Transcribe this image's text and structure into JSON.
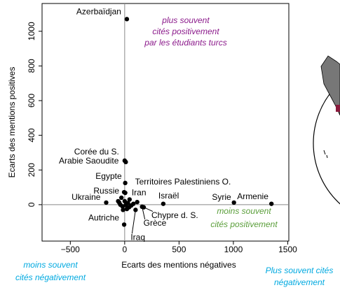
{
  "chart_data": {
    "type": "scatter",
    "xlabel": "Ecarts des mentions négatives",
    "ylabel": "Ecarts des mentions positives",
    "xlim": [
      -760,
      1510
    ],
    "xticks": [
      {
        "value": -500,
        "label": "−500"
      },
      0,
      500,
      1000,
      1500
    ],
    "ylim": [
      -210,
      1160
    ],
    "yticks": [
      0,
      200,
      400,
      600,
      800,
      1000
    ],
    "color": "#000000",
    "points": [
      {
        "label": "Azerbaïdjan",
        "x": 20,
        "y": 1070
      },
      {
        "label": "Corée du S.",
        "x": 0,
        "y": 254
      },
      {
        "label": "Arabie Saoudite",
        "x": 10,
        "y": 246
      },
      {
        "label": "Egypte",
        "x": 5,
        "y": 125
      },
      {
        "label": "Territoires Palestiniens O.",
        "x": 5,
        "y": 68
      },
      {
        "label": "Russie",
        "x": -5,
        "y": 72
      },
      {
        "label": "Iran",
        "x": 45,
        "y": 30
      },
      {
        "label": "Israël",
        "x": 355,
        "y": 5
      },
      {
        "label": "Syrie",
        "x": 1005,
        "y": 12
      },
      {
        "label": "Armenie",
        "x": 1350,
        "y": 5
      },
      {
        "label": "Ukraine",
        "x": -170,
        "y": 12
      },
      {
        "label": "Chypre d. S.",
        "x": 175,
        "y": -15
      },
      {
        "label": "Grèce",
        "x": 160,
        "y": -12
      },
      {
        "label": "Iraq",
        "x": 100,
        "y": -30
      },
      {
        "label": "Autriche",
        "x": -5,
        "y": -115
      }
    ],
    "other_points": [
      {
        "x": -50,
        "y": 12
      },
      {
        "x": -40,
        "y": 0
      },
      {
        "x": -20,
        "y": -10
      },
      {
        "x": 10,
        "y": -2
      },
      {
        "x": 40,
        "y": -15
      },
      {
        "x": -60,
        "y": 20
      },
      {
        "x": 80,
        "y": 5
      },
      {
        "x": 115,
        "y": 15
      },
      {
        "x": 20,
        "y": -25
      },
      {
        "x": -15,
        "y": -30
      },
      {
        "x": 0,
        "y": 20
      },
      {
        "x": 60,
        "y": -5
      },
      {
        "x": -30,
        "y": 40
      },
      {
        "x": 30,
        "y": 10
      }
    ],
    "annotations": {
      "top": [
        "plus souvent",
        "cités positivement",
        "par les étudiants turcs"
      ],
      "right": [
        "moins souvent",
        "cités positivement"
      ],
      "bottom_left": [
        "moins souvent",
        "cités négativement"
      ],
      "bottom_right": [
        "Plus souvent cités",
        "négativement"
      ]
    }
  }
}
